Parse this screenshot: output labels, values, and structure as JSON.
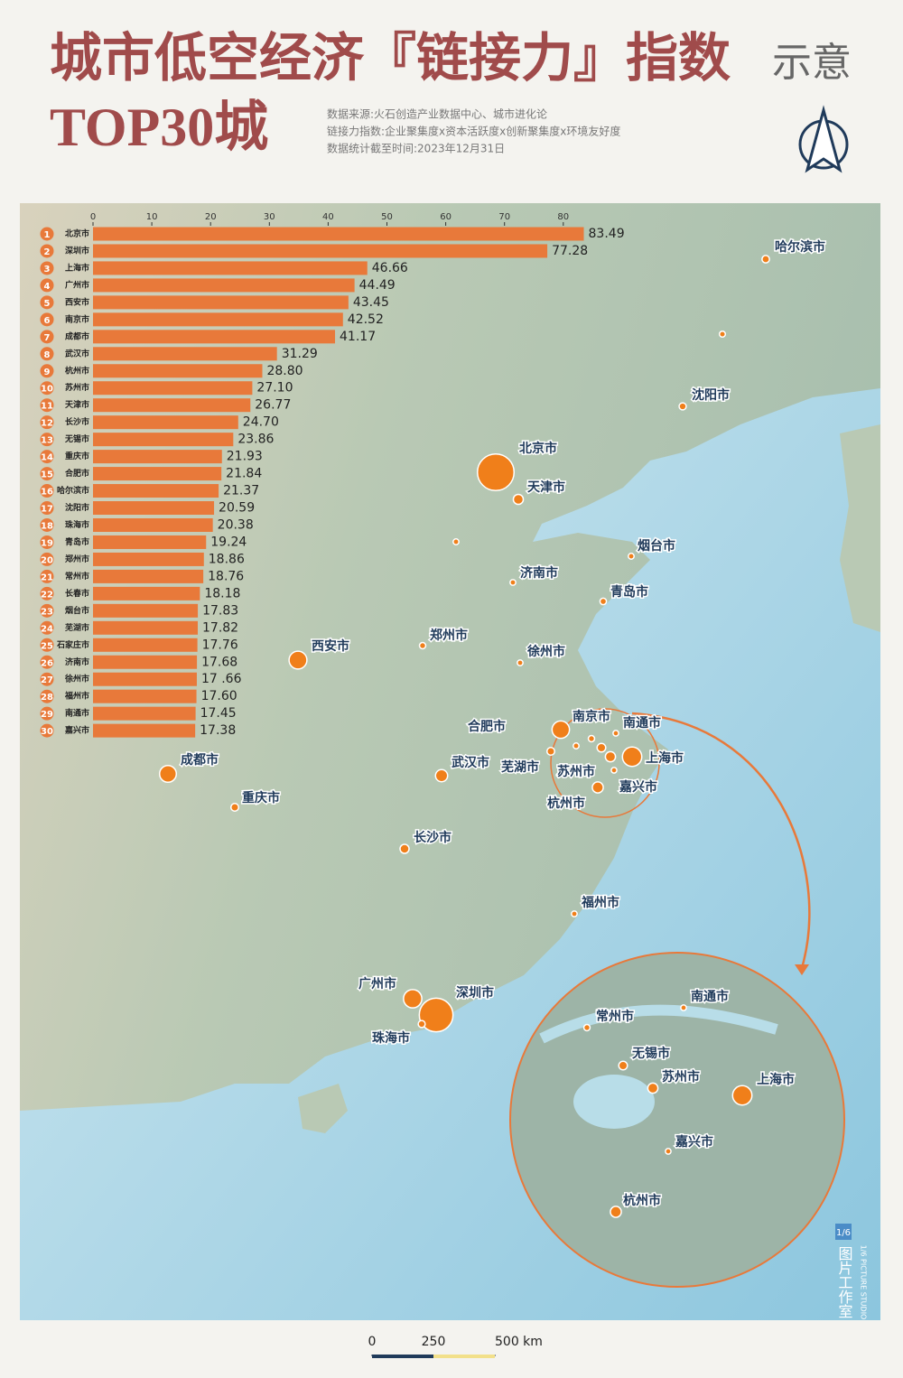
{
  "header": {
    "title": "城市低空经济『链接力』指数",
    "title_suffix": "示意",
    "subtitle": "TOP30城",
    "notes": [
      "数据来源:火石创造产业数据中心、城市进化论",
      "链接力指数:企业聚集度x资本活跃度x创新聚集度x环境友好度",
      "数据统计截至时间:2023年12月31日"
    ]
  },
  "chart_data": {
    "type": "bar",
    "orientation": "horizontal",
    "categories": [
      "北京市",
      "深圳市",
      "上海市",
      "广州市",
      "西安市",
      "南京市",
      "成都市",
      "武汉市",
      "杭州市",
      "苏州市",
      "天津市",
      "长沙市",
      "无锡市",
      "重庆市",
      "合肥市",
      "哈尔滨市",
      "沈阳市",
      "珠海市",
      "青岛市",
      "郑州市",
      "常州市",
      "长春市",
      "烟台市",
      "芜湖市",
      "石家庄市",
      "济南市",
      "徐州市",
      "福州市",
      "南通市",
      "嘉兴市"
    ],
    "ranks": [
      1,
      2,
      3,
      4,
      5,
      6,
      7,
      8,
      9,
      10,
      11,
      12,
      13,
      14,
      15,
      16,
      17,
      18,
      19,
      20,
      21,
      22,
      23,
      24,
      25,
      26,
      27,
      28,
      29,
      30
    ],
    "values": [
      83.49,
      77.28,
      46.66,
      44.49,
      43.45,
      42.52,
      41.17,
      31.29,
      28.8,
      27.1,
      26.77,
      24.7,
      23.86,
      21.93,
      21.84,
      21.37,
      20.59,
      20.38,
      19.24,
      18.86,
      18.76,
      18.18,
      17.83,
      17.82,
      17.76,
      17.68,
      17.66,
      17.6,
      17.45,
      17.38
    ],
    "value_labels": [
      "83.49",
      "77.28",
      "46.66",
      "44.49",
      "43.45",
      "42.52",
      "41.17",
      "31.29",
      "28.80",
      "27.10",
      "26.77",
      "24.70",
      "23.86",
      "21.93",
      "21.84",
      "21.37",
      "20.59",
      "20.38",
      "19.24",
      "18.86",
      "18.76",
      "18.18",
      "17.83",
      "17.82",
      "17.76",
      "17.68",
      "17 .66",
      "17.60",
      "17.45",
      "17.38"
    ],
    "color": "#e8793a",
    "xlim": [
      0,
      85
    ],
    "xticks": [
      0,
      10,
      20,
      30,
      40,
      50,
      60,
      70,
      80
    ]
  },
  "map": {
    "color": "#f07f1a",
    "scale_ticks": [
      0,
      250,
      {
        "value": 500,
        "label": "500 km"
      }
    ]
  },
  "credit": {
    "logo": "1/6",
    "name": "图片工作室",
    "name_en": "1/6 PICTURE STUDIO"
  }
}
